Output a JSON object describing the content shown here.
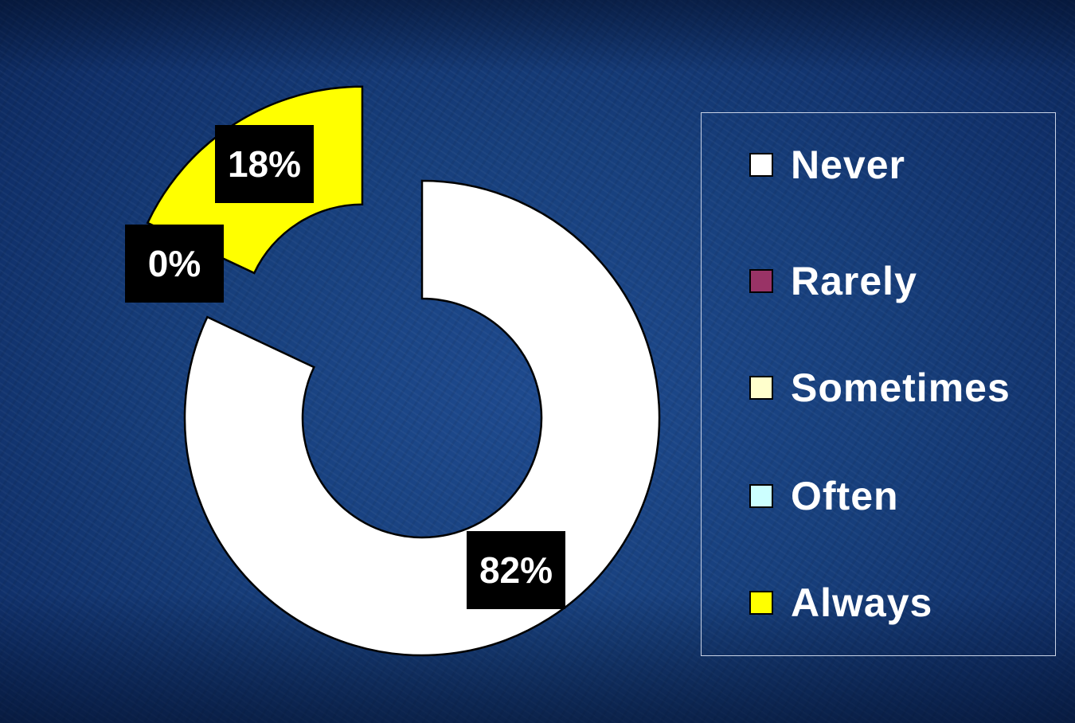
{
  "chart_data": {
    "type": "pie",
    "subtype": "doughnut-exploded",
    "categories": [
      "Never",
      "Rarely",
      "Sometimes",
      "Often",
      "Always"
    ],
    "values": [
      82,
      0,
      0,
      0,
      18
    ],
    "data_labels": [
      "82%",
      "0%",
      "0%",
      "0%",
      "18%"
    ],
    "visible_labels": [
      {
        "category": "Never",
        "text": "82%"
      },
      {
        "category": "Rarely",
        "text": "0%"
      },
      {
        "category": "Always",
        "text": "18%"
      }
    ],
    "colors": [
      "#ffffff",
      "#993366",
      "#ffffcc",
      "#ccffff",
      "#ffff00"
    ],
    "legend_position": "right",
    "title": ""
  },
  "legend": {
    "items": [
      {
        "label": "Never",
        "color": "#ffffff"
      },
      {
        "label": "Rarely",
        "color": "#993366"
      },
      {
        "label": "Sometimes",
        "color": "#ffffcc"
      },
      {
        "label": "Often",
        "color": "#ccffff"
      },
      {
        "label": "Always",
        "color": "#ffff00"
      }
    ]
  }
}
